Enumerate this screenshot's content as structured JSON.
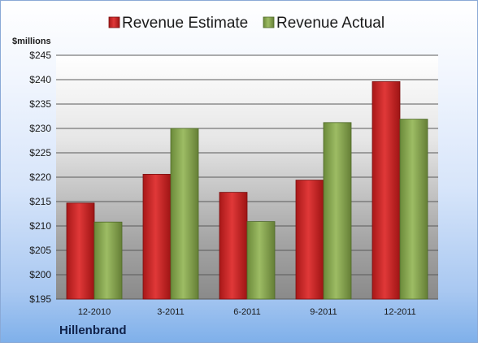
{
  "chart_data": {
    "type": "bar",
    "unit_label": "$millions",
    "company": "Hillenbrand",
    "categories": [
      "12-2010",
      "3-2011",
      "6-2011",
      "9-2011",
      "12-2011"
    ],
    "series": [
      {
        "name": "Revenue Estimate",
        "color": "#d42a2a",
        "values": [
          214.7,
          220.6,
          216.9,
          219.4,
          239.6
        ]
      },
      {
        "name": "Revenue Actual",
        "color": "#8aaa52",
        "values": [
          210.8,
          230.0,
          210.9,
          231.2,
          231.9
        ]
      }
    ],
    "ylim": [
      195,
      245
    ],
    "yticks": [
      "$195",
      "$200",
      "$205",
      "$210",
      "$215",
      "$220",
      "$225",
      "$230",
      "$235",
      "$240",
      "$245"
    ],
    "grid": true,
    "legend_position": "top"
  }
}
